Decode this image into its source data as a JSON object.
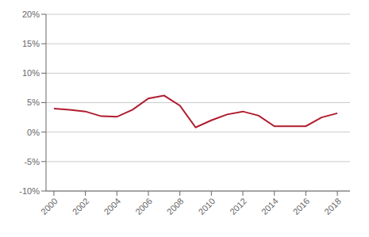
{
  "chart_data": {
    "type": "line",
    "x": [
      2000,
      2001,
      2002,
      2003,
      2004,
      2005,
      2006,
      2007,
      2008,
      2009,
      2010,
      2011,
      2012,
      2013,
      2014,
      2015,
      2016,
      2017,
      2018
    ],
    "values": [
      4.0,
      3.8,
      3.5,
      2.7,
      2.6,
      3.8,
      5.7,
      6.2,
      4.5,
      0.8,
      2.0,
      3.0,
      3.5,
      2.8,
      1.0,
      1.0,
      1.0,
      2.5,
      3.2
    ],
    "color": "#b01c2e",
    "xlim": [
      1999.5,
      2018.8
    ],
    "xticks": [
      2000,
      2002,
      2004,
      2006,
      2008,
      2010,
      2012,
      2014,
      2016,
      2018
    ],
    "ylim": [
      -10,
      20
    ],
    "yticks": [
      {
        "value": -10,
        "label": "-10%"
      },
      {
        "value": -5,
        "label": "-5%"
      },
      {
        "value": 0,
        "label": "0%"
      },
      {
        "value": 5,
        "label": "5%"
      },
      {
        "value": 10,
        "label": "10%"
      },
      {
        "value": 15,
        "label": "15%"
      },
      {
        "value": 20,
        "label": "20%"
      }
    ],
    "grid": "y"
  }
}
